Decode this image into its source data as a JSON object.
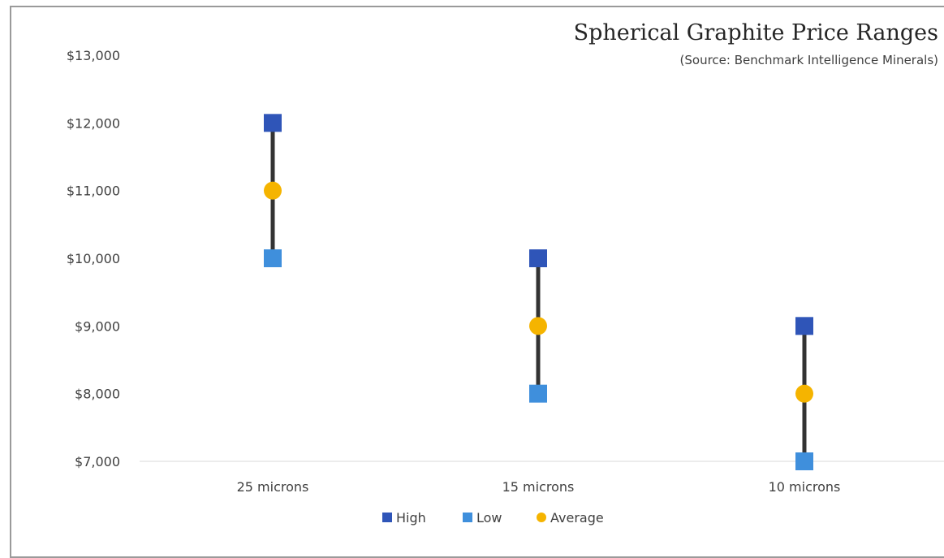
{
  "chart_data": {
    "type": "scatter",
    "title": "Spherical Graphite Price Ranges",
    "subtitle": "(Source: Benchmark Intelligence Minerals)",
    "categories": [
      "25 microns",
      "15 microns",
      "10 microns"
    ],
    "series": [
      {
        "name": "High",
        "values": [
          12000,
          10000,
          9000
        ],
        "color": "#2f55b8",
        "marker": "square"
      },
      {
        "name": "Low",
        "values": [
          10000,
          8000,
          7000
        ],
        "color": "#3f8fdc",
        "marker": "square"
      },
      {
        "name": "Average",
        "values": [
          11000,
          9000,
          8000
        ],
        "color": "#f5b400",
        "marker": "circle"
      }
    ],
    "range_bar_color": "#333333",
    "ylim": [
      7000,
      13000
    ],
    "yticks": [
      7000,
      8000,
      9000,
      10000,
      11000,
      12000,
      13000
    ],
    "ytick_labels": [
      "$7,000",
      "$8,000",
      "$9,000",
      "$10,000",
      "$11,000",
      "$12,000",
      "$13,000"
    ],
    "xlabel": "",
    "ylabel": "",
    "grid": false,
    "legend_position": "bottom-center"
  }
}
